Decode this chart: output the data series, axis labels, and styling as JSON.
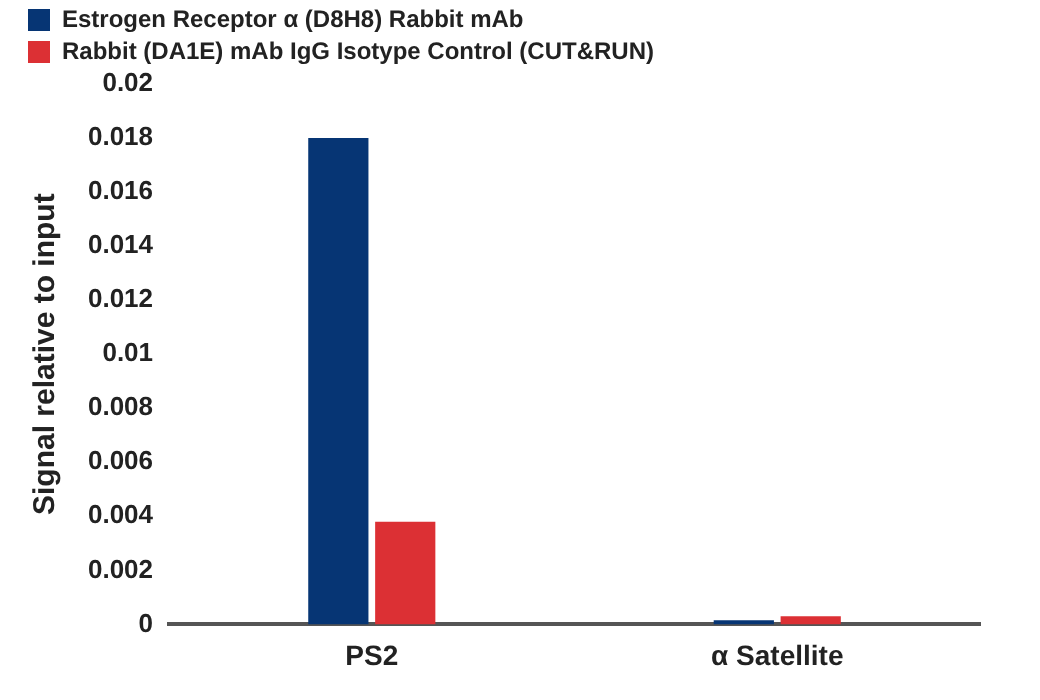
{
  "chart_data": {
    "type": "bar",
    "ylabel": "Signal relative to input",
    "categories": [
      "PS2",
      "α Satellite"
    ],
    "series": [
      {
        "name": "Estrogen Receptor α (D8H8) Rabbit mAb",
        "color": "#063574",
        "values": [
          0.018,
          0.00015
        ]
      },
      {
        "name": "Rabbit (DA1E) mAb IgG Isotype Control (CUT&RUN)",
        "color": "#dc3034",
        "values": [
          0.0038,
          0.0003
        ]
      }
    ],
    "ylim": [
      0,
      0.02
    ],
    "yticks": [
      0,
      0.002,
      0.004,
      0.006,
      0.008,
      0.01,
      0.012,
      0.014,
      0.016,
      0.018,
      0.02
    ],
    "grid": false,
    "legend": "top left"
  }
}
